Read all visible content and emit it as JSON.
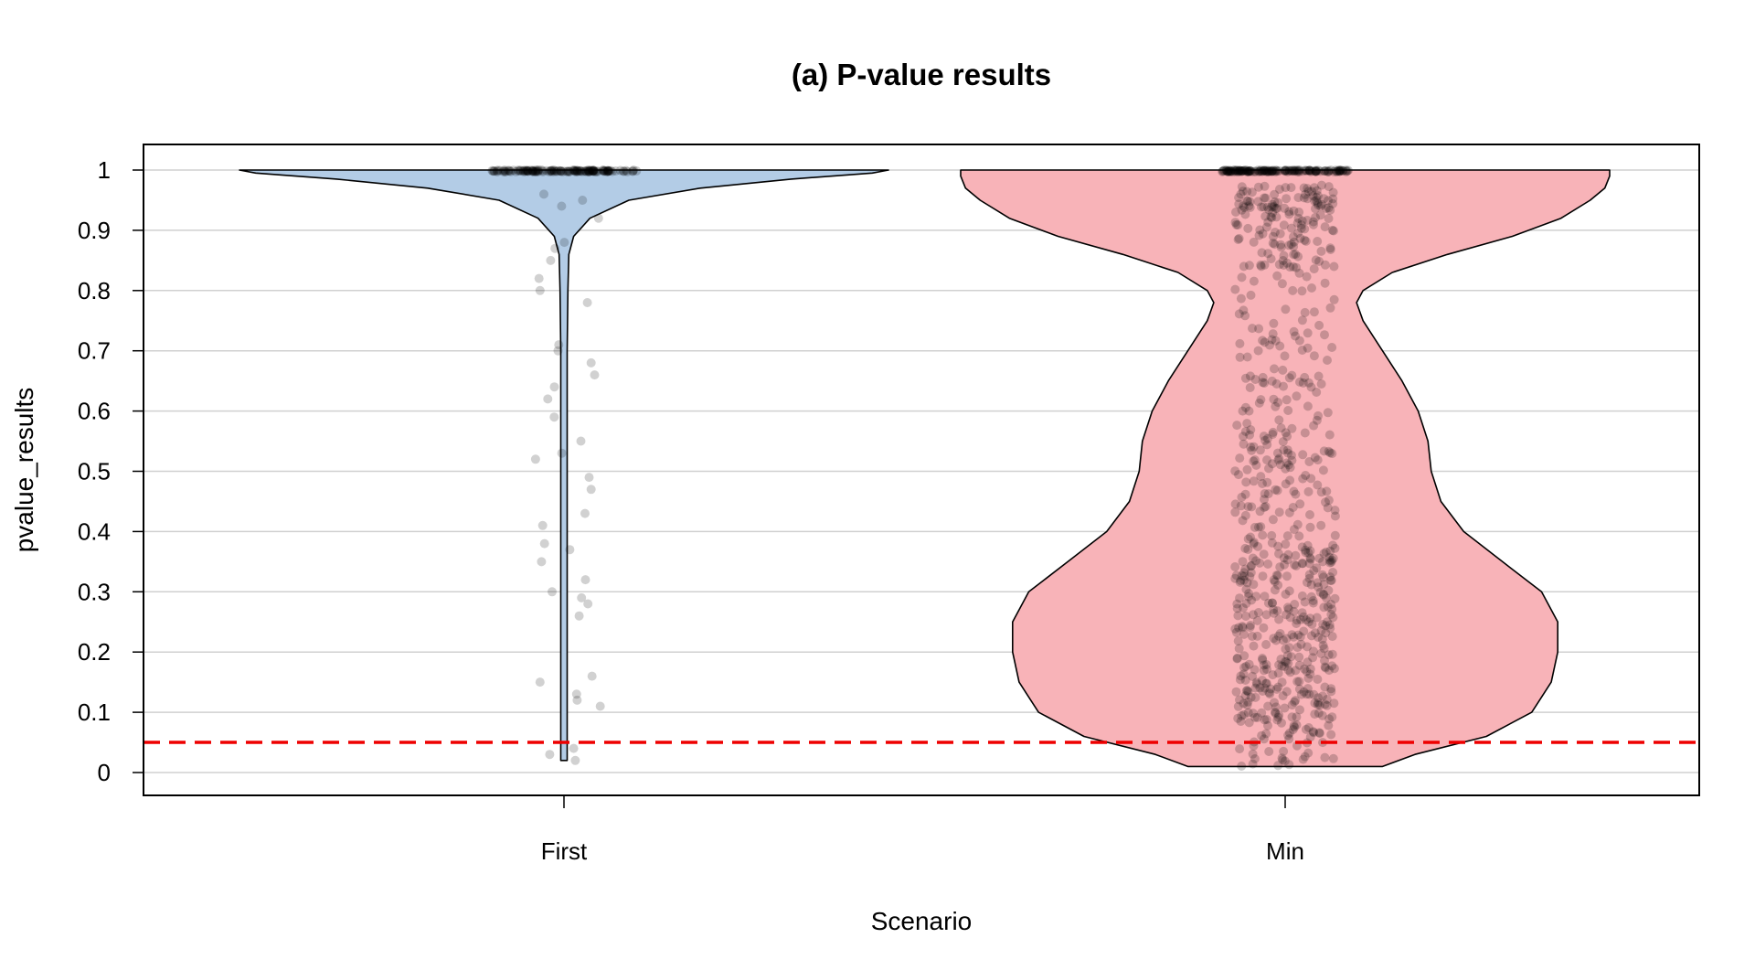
{
  "chart_data": {
    "type": "violin",
    "title": "(a) P-value results",
    "xlabel": "Scenario",
    "ylabel": "pvalue_results",
    "categories": [
      "First",
      "Min"
    ],
    "ylim": [
      0,
      1
    ],
    "yticks": [
      0,
      0.1,
      0.2,
      0.3,
      0.4,
      0.5,
      0.6,
      0.7,
      0.8,
      0.9,
      1
    ],
    "ytick_labels": [
      "0",
      "0.1",
      "0.2",
      "0.3",
      "0.4",
      "0.5",
      "0.6",
      "0.7",
      "0.8",
      "0.9",
      "1"
    ],
    "grid": "horizontal",
    "reference_line": {
      "y": 0.05,
      "style": "dashed",
      "color": "#ee0000"
    },
    "colors": {
      "First": "#b3cce6",
      "Min": "#f8b3b8",
      "points": "#000000"
    },
    "series": [
      {
        "name": "First",
        "range": [
          0.02,
          1.0
        ],
        "density_profile": [
          [
            0.02,
            0.01
          ],
          [
            0.1,
            0.01
          ],
          [
            0.2,
            0.01
          ],
          [
            0.3,
            0.01
          ],
          [
            0.4,
            0.01
          ],
          [
            0.5,
            0.01
          ],
          [
            0.6,
            0.01
          ],
          [
            0.7,
            0.01
          ],
          [
            0.8,
            0.012
          ],
          [
            0.86,
            0.015
          ],
          [
            0.89,
            0.03
          ],
          [
            0.92,
            0.08
          ],
          [
            0.95,
            0.2
          ],
          [
            0.97,
            0.42
          ],
          [
            0.985,
            0.7
          ],
          [
            0.995,
            0.95
          ],
          [
            1.0,
            1.0
          ]
        ],
        "points_sample": [
          0.02,
          0.03,
          0.04,
          0.11,
          0.12,
          0.13,
          0.15,
          0.16,
          0.26,
          0.28,
          0.29,
          0.3,
          0.32,
          0.35,
          0.37,
          0.38,
          0.41,
          0.43,
          0.47,
          0.49,
          0.52,
          0.53,
          0.55,
          0.59,
          0.62,
          0.64,
          0.66,
          0.68,
          0.7,
          0.71,
          0.78,
          0.8,
          0.82,
          0.85,
          0.87,
          0.88,
          0.92,
          0.94,
          0.95,
          0.96
        ],
        "point_mass_at_1": 1.0
      },
      {
        "name": "Min",
        "range": [
          0.01,
          1.0
        ],
        "density_profile": [
          [
            0.01,
            0.3
          ],
          [
            0.03,
            0.4
          ],
          [
            0.06,
            0.62
          ],
          [
            0.1,
            0.76
          ],
          [
            0.15,
            0.82
          ],
          [
            0.2,
            0.84
          ],
          [
            0.25,
            0.84
          ],
          [
            0.3,
            0.79
          ],
          [
            0.35,
            0.67
          ],
          [
            0.4,
            0.55
          ],
          [
            0.45,
            0.48
          ],
          [
            0.5,
            0.45
          ],
          [
            0.55,
            0.44
          ],
          [
            0.6,
            0.41
          ],
          [
            0.65,
            0.36
          ],
          [
            0.7,
            0.3
          ],
          [
            0.75,
            0.24
          ],
          [
            0.78,
            0.22
          ],
          [
            0.8,
            0.24
          ],
          [
            0.83,
            0.33
          ],
          [
            0.86,
            0.5
          ],
          [
            0.89,
            0.7
          ],
          [
            0.92,
            0.85
          ],
          [
            0.95,
            0.94
          ],
          [
            0.97,
            0.985
          ],
          [
            0.99,
            1.0
          ],
          [
            1.0,
            1.0
          ]
        ],
        "point_mass_at_1": 1.0
      }
    ]
  }
}
